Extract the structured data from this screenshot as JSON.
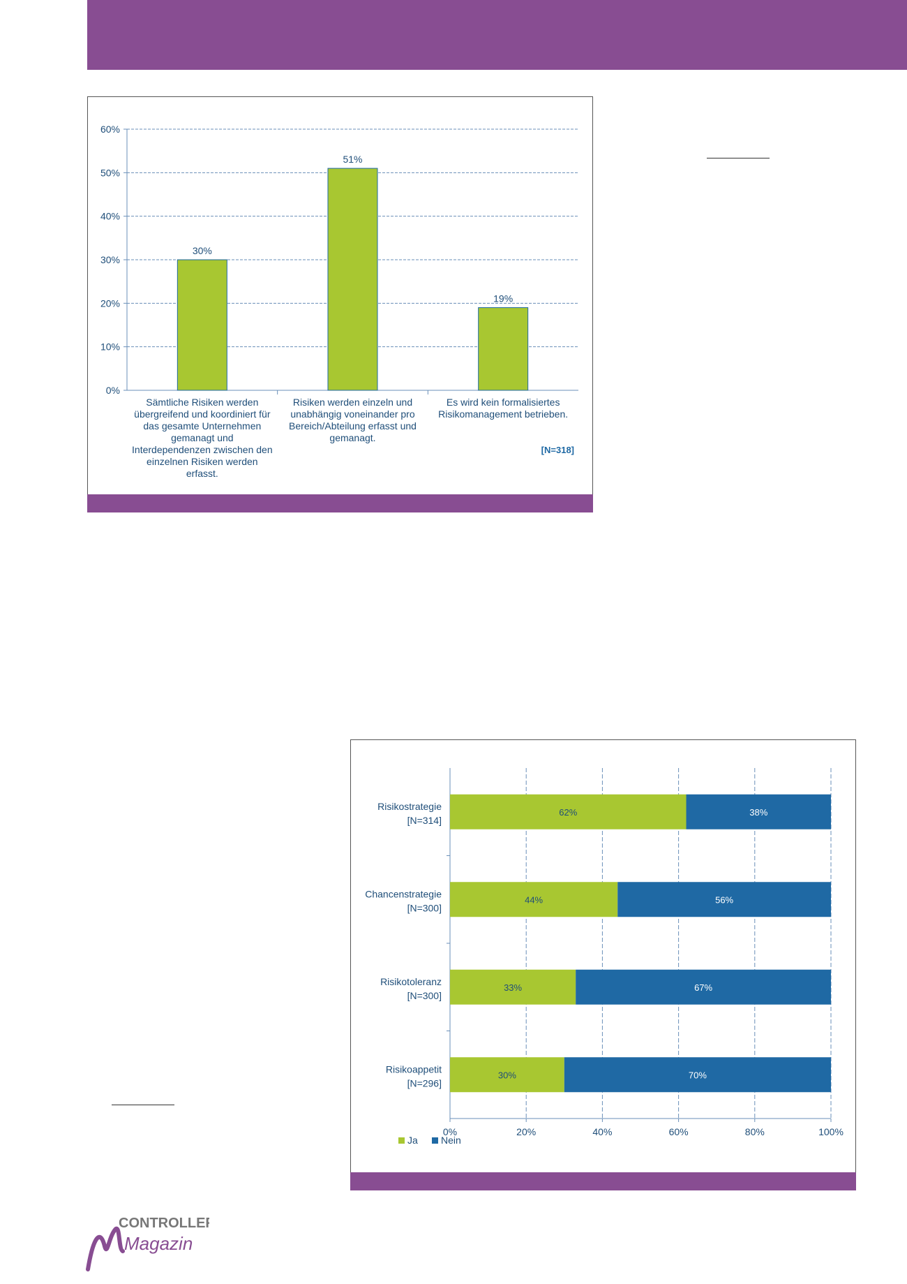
{
  "colors": {
    "band": "#884d92",
    "green": "#a8c731",
    "blue": "#1f69a4",
    "text": "#1f4e79",
    "grid": "#6a8fb8"
  },
  "logo": {
    "text": "CONTROLLER",
    "script": "Magazin"
  },
  "chart_data": [
    {
      "type": "bar",
      "categories": [
        [
          "Sämtliche Risiken werden",
          "übergreifend und koordiniert für",
          "das gesamte Unternehmen",
          "gemanagt und",
          "Interdependenzen zwischen den",
          "einzelnen Risiken werden",
          "erfasst."
        ],
        [
          "Risiken werden einzeln und",
          "unabhängig voneinander pro",
          "Bereich/Abteilung erfasst und",
          "gemanagt."
        ],
        [
          "Es wird kein formalisiertes",
          "Risikomanagement betrieben."
        ]
      ],
      "values": [
        30,
        51,
        19
      ],
      "data_labels": [
        "30%",
        "51%",
        "19%"
      ],
      "ylim": [
        0,
        60
      ],
      "yticks": [
        "0%",
        "10%",
        "20%",
        "30%",
        "40%",
        "50%",
        "60%"
      ],
      "grid": true,
      "note": "[N=318]"
    },
    {
      "type": "bar",
      "orientation": "horizontal-stacked",
      "categories": [
        [
          "Risikostrategie",
          "[N=314]"
        ],
        [
          "Chancenstrategie",
          "[N=300]"
        ],
        [
          "Risikotoleranz",
          "[N=300]"
        ],
        [
          "Risikoappetit",
          "[N=296]"
        ]
      ],
      "series": [
        {
          "name": "Ja",
          "values": [
            62,
            44,
            33,
            30
          ],
          "labels": [
            "62%",
            "44%",
            "33%",
            "30%"
          ]
        },
        {
          "name": "Nein",
          "values": [
            38,
            56,
            67,
            70
          ],
          "labels": [
            "38%",
            "56%",
            "67%",
            "70%"
          ]
        }
      ],
      "xlim": [
        0,
        100
      ],
      "xticks": [
        "0%",
        "20%",
        "40%",
        "60%",
        "80%",
        "100%"
      ],
      "grid": true,
      "legend": "bottom-left"
    }
  ]
}
